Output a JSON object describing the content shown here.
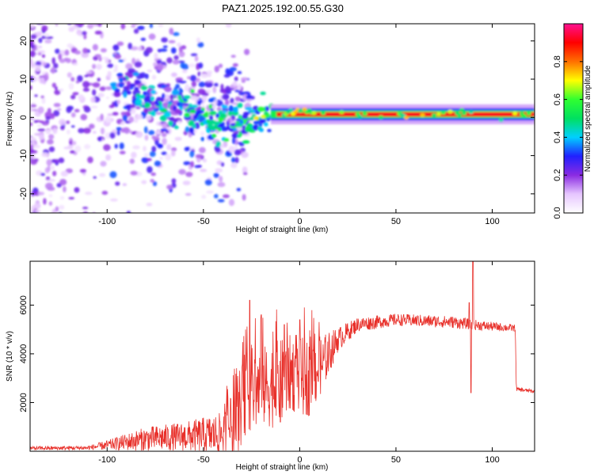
{
  "figure": {
    "title": "PAZ1.2025.192.00.55.G30"
  },
  "chart_data": [
    {
      "type": "heatmap",
      "xlabel": "Height of straight line (km)",
      "ylabel": "Frequency (Hz)",
      "xlim": [
        -140,
        122
      ],
      "ylim": [
        -25,
        24.5
      ],
      "xticks": [
        -100,
        -50,
        0,
        50,
        100
      ],
      "yticks": [
        -20,
        -10,
        0,
        10,
        20
      ],
      "colorbar": {
        "label": "Normalized spectral amplitude",
        "range": [
          0,
          1
        ],
        "ticks": [
          0.0,
          0.2,
          0.4,
          0.6,
          0.8
        ],
        "colors": [
          "#ffffff",
          "#e6c6ff",
          "#8a2be2",
          "#2020ff",
          "#00d0ff",
          "#00e060",
          "#30ff30",
          "#ffff00",
          "#ff7000",
          "#ff0000",
          "#ff1090"
        ]
      },
      "features": {
        "scattered_noise_region_x": [
          -140,
          -25
        ],
        "scattered_noise_center_hz": 4,
        "scattered_noise_spread_hz": [
          -25,
          24
        ],
        "ridge_line": [
          {
            "x": -90,
            "y": 8
          },
          {
            "x": -80,
            "y": 6
          },
          {
            "x": -70,
            "y": 3
          },
          {
            "x": -60,
            "y": 2
          },
          {
            "x": -50,
            "y": 0
          },
          {
            "x": -40,
            "y": -2
          },
          {
            "x": -32,
            "y": -1
          },
          {
            "x": -25,
            "y": 0
          },
          {
            "x": -15,
            "y": 1
          },
          {
            "x": -5,
            "y": 1.5
          },
          {
            "x": 0,
            "y": 2
          },
          {
            "x": 10,
            "y": 1
          },
          {
            "x": 30,
            "y": 0.8
          },
          {
            "x": 50,
            "y": 0.8
          },
          {
            "x": 70,
            "y": 0.8
          },
          {
            "x": 85,
            "y": 1.5
          },
          {
            "x": 90,
            "y": 0.5
          },
          {
            "x": 122,
            "y": 0.8
          }
        ],
        "strong_band_x": [
          -15,
          122
        ],
        "strong_band_y": 0.8
      }
    },
    {
      "type": "line",
      "xlabel": "Height of straight line (km)",
      "ylabel": "SNR (10 * v/v)",
      "xlim": [
        -140,
        122
      ],
      "ylim": [
        0,
        7800
      ],
      "xticks": [
        -100,
        -50,
        0,
        50,
        100
      ],
      "yticks": [
        2000,
        4000,
        6000
      ],
      "series": [
        {
          "color": "#e8302a",
          "envelope": [
            {
              "x": -140,
              "base": 120,
              "amp": 80
            },
            {
              "x": -110,
              "base": 140,
              "amp": 90
            },
            {
              "x": -100,
              "base": 250,
              "amp": 200
            },
            {
              "x": -80,
              "base": 500,
              "amp": 500
            },
            {
              "x": -60,
              "base": 600,
              "amp": 600
            },
            {
              "x": -40,
              "base": 700,
              "amp": 900
            },
            {
              "x": -32,
              "base": 1300,
              "amp": 1400
            },
            {
              "x": -28,
              "base": 2500,
              "amp": 1800
            },
            {
              "x": -20,
              "base": 2600,
              "amp": 1700
            },
            {
              "x": -10,
              "base": 2800,
              "amp": 1800
            },
            {
              "x": -5,
              "base": 3200,
              "amp": 1600
            },
            {
              "x": 5,
              "base": 3000,
              "amp": 1600
            },
            {
              "x": 10,
              "base": 3400,
              "amp": 1300
            },
            {
              "x": 20,
              "base": 4600,
              "amp": 500
            },
            {
              "x": 30,
              "base": 5200,
              "amp": 300
            },
            {
              "x": 50,
              "base": 5400,
              "amp": 250
            },
            {
              "x": 80,
              "base": 5300,
              "amp": 250
            },
            {
              "x": 95,
              "base": 5150,
              "amp": 200
            },
            {
              "x": 112,
              "base": 5050,
              "amp": 150
            },
            {
              "x": 112.5,
              "base": 2550,
              "amp": 80
            },
            {
              "x": 122,
              "base": 2450,
              "amp": 80
            }
          ],
          "peaks": [
            {
              "x": -26,
              "y": 6200
            },
            {
              "x": -20,
              "y": 5600
            },
            {
              "x": -8,
              "y": 5200
            },
            {
              "x": 0,
              "y": 5400
            },
            {
              "x": 90,
              "y": 7800
            },
            {
              "x": 88,
              "y": 6100
            }
          ],
          "dips": [
            {
              "x": -10,
              "y": 1200
            },
            {
              "x": 4,
              "y": 1500
            },
            {
              "x": 89,
              "y": 2400
            }
          ]
        }
      ]
    }
  ]
}
